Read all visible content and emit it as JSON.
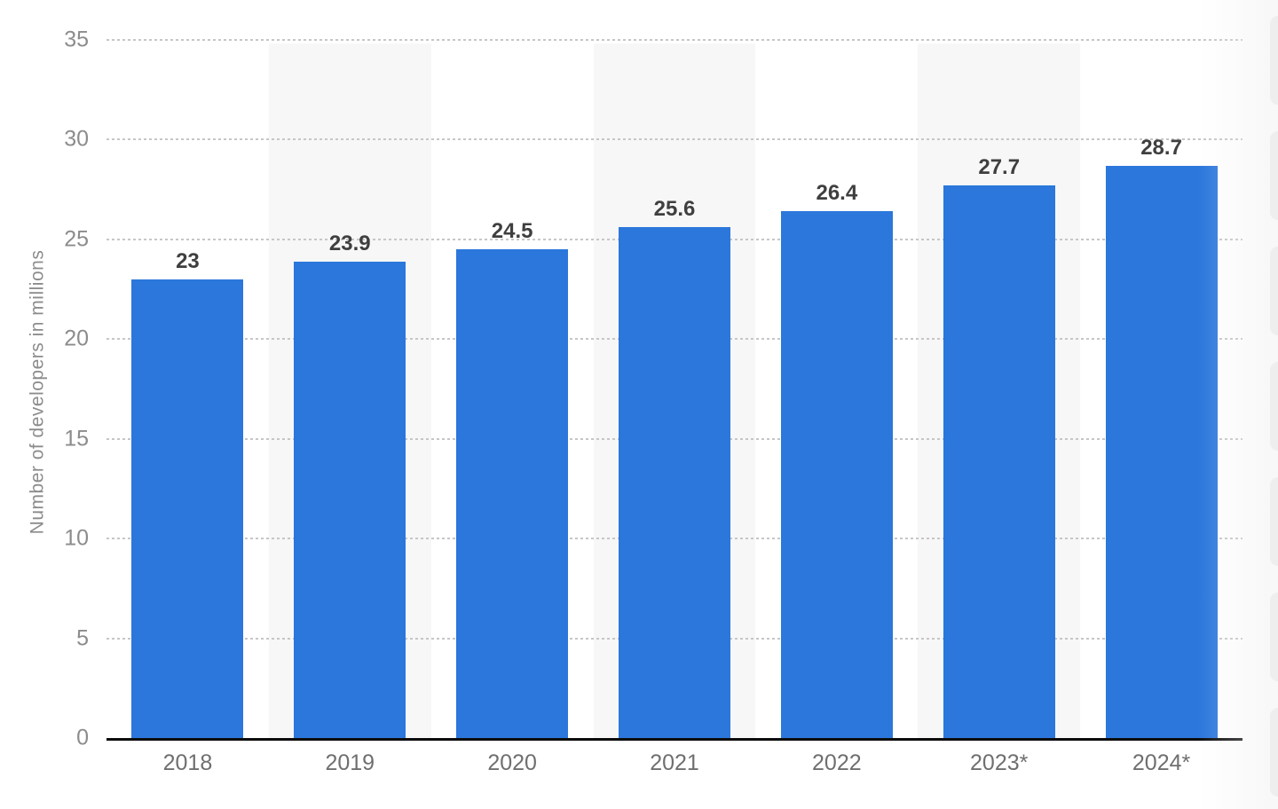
{
  "chart_data": {
    "type": "bar",
    "categories": [
      "2018",
      "2019",
      "2020",
      "2021",
      "2022",
      "2023*",
      "2024*"
    ],
    "values": [
      23,
      23.9,
      24.5,
      25.6,
      26.4,
      27.7,
      28.7
    ],
    "value_labels": [
      "23",
      "23.9",
      "24.5",
      "25.6",
      "26.4",
      "27.7",
      "28.7"
    ],
    "title": "",
    "xlabel": "",
    "ylabel": "Number of developers in millions",
    "ylim": [
      0,
      35
    ],
    "yticks": [
      35,
      30,
      25,
      20,
      15,
      10,
      5,
      0
    ],
    "grid": "horizontal-dotted",
    "legend": "none",
    "banded_columns": [
      1,
      3,
      5
    ],
    "colors": {
      "bar": "#2b77dc",
      "band": "#f7f7f7",
      "grid": "#c6c6c6",
      "axis": "#0d0d0d",
      "value_label": "#3f3f3f",
      "x_tick": "#6f6f6f",
      "y_tick": "#8c8c8c",
      "y_axis_title": "#8c8c8c",
      "page_edge": "#eeeeee"
    }
  }
}
